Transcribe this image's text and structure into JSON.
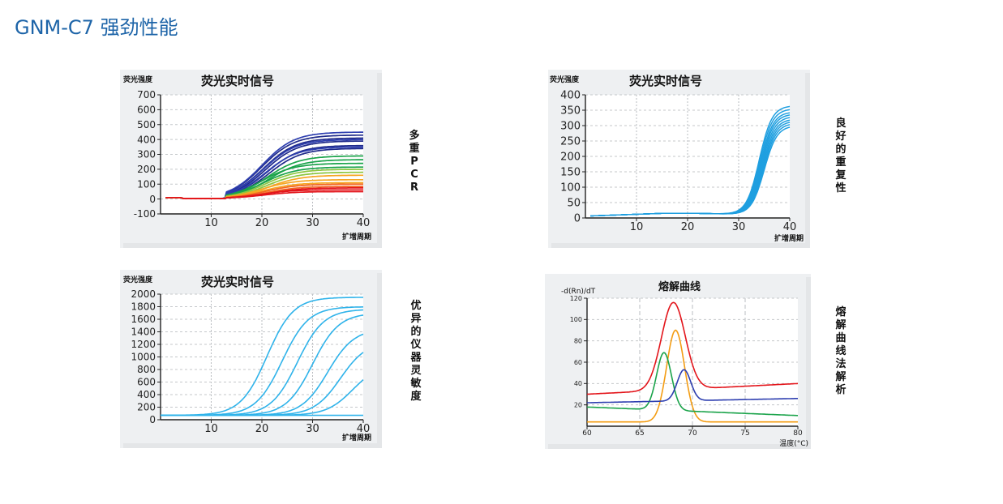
{
  "page_title": "GNM-C7 强劲性能",
  "side_labels": {
    "multiplex_pcr": "多重PCR",
    "repeatability": "良好的重复性",
    "sensitivity": "优异的仪器灵敏度",
    "melt_analysis": "熔解曲线法解析"
  },
  "chart_data": [
    {
      "id": "multiplex",
      "type": "line",
      "title": "荧光实时信号",
      "ylabel": "荧光强度",
      "xlabel": "扩增周期",
      "xlim": [
        0,
        40
      ],
      "ylim": [
        -100,
        700
      ],
      "x_ticks": [
        10,
        20,
        30,
        40
      ],
      "y_ticks": [
        700,
        600,
        500,
        400,
        300,
        200,
        100,
        0,
        -100
      ],
      "curve_model": "sigmoid",
      "midpoint": 20,
      "slope": 3.2,
      "series": [
        {
          "color": "#1f2a8a",
          "values": [
            430,
            410,
            390,
            360,
            340
          ]
        },
        {
          "color": "#2e3fb0",
          "values": [
            450,
            400,
            350
          ]
        },
        {
          "color": "#1aa34a",
          "values": [
            290,
            265,
            240,
            215
          ]
        },
        {
          "color": "#8cc63f",
          "values": [
            200,
            180
          ]
        },
        {
          "color": "#f6a623",
          "values": [
            160,
            130,
            110
          ]
        },
        {
          "color": "#f26522",
          "values": [
            100,
            85
          ]
        },
        {
          "color": "#e3151b",
          "values": [
            75,
            62,
            50
          ]
        }
      ]
    },
    {
      "id": "repeatability",
      "type": "line",
      "title": "荧光实时信号",
      "ylabel": "荧光强度",
      "xlabel": "扩增周期",
      "xlim": [
        0,
        40
      ],
      "ylim": [
        0,
        400
      ],
      "x_ticks": [
        10,
        20,
        30,
        40
      ],
      "y_ticks": [
        400,
        350,
        300,
        250,
        200,
        150,
        100,
        50,
        0
      ],
      "color": "#1f9fe0",
      "replicate_plateaus": [
        365,
        355,
        345,
        338,
        330,
        322,
        315,
        308,
        300
      ],
      "midpoint": 34.5,
      "baseline": 15
    },
    {
      "id": "sensitivity",
      "type": "line",
      "title": "荧光实时信号",
      "ylabel": "荧光强度",
      "xlabel": "扩增周期",
      "xlim": [
        0,
        40
      ],
      "ylim": [
        0,
        2000
      ],
      "x_ticks": [
        10,
        20,
        30,
        40
      ],
      "y_ticks": [
        2000,
        1800,
        1600,
        1400,
        1200,
        1000,
        800,
        600,
        400,
        200,
        0
      ],
      "color": "#2fb3ea",
      "dilution_series": [
        {
          "midpoint": 21,
          "plateau": 1950
        },
        {
          "midpoint": 24,
          "plateau": 1800
        },
        {
          "midpoint": 27,
          "plateau": 1760
        },
        {
          "midpoint": 30,
          "plateau": 1700
        },
        {
          "midpoint": 33,
          "plateau": 1450
        },
        {
          "midpoint": 35.5,
          "plateau": 1250
        },
        {
          "midpoint": 38,
          "plateau": 900
        },
        {
          "midpoint": 60,
          "plateau": 0
        }
      ]
    },
    {
      "id": "melt",
      "type": "line",
      "title": "熔解曲线",
      "ylabel": "-d(Rn)/dT",
      "xlabel": "温度(°C)",
      "xlim": [
        60,
        80
      ],
      "ylim": [
        0,
        120
      ],
      "x_ticks": [
        60,
        65,
        70,
        75,
        80
      ],
      "y_ticks": [
        120,
        100,
        80,
        60,
        40,
        20
      ],
      "series": [
        {
          "color": "#e3151b",
          "peak_x": 68.2,
          "peak_y": 116,
          "base_left": 30,
          "base_right": 40,
          "width": 1.6
        },
        {
          "color": "#f39c12",
          "peak_x": 68.4,
          "peak_y": 90,
          "base_left": 4,
          "base_right": 4,
          "width": 1.2
        },
        {
          "color": "#1aa34a",
          "peak_x": 67.3,
          "peak_y": 69,
          "base_left": 18,
          "base_right": 10,
          "width": 1.0
        },
        {
          "color": "#2e3fb0",
          "peak_x": 69.2,
          "peak_y": 53,
          "base_left": 22,
          "base_right": 26,
          "width": 0.9
        }
      ]
    }
  ]
}
